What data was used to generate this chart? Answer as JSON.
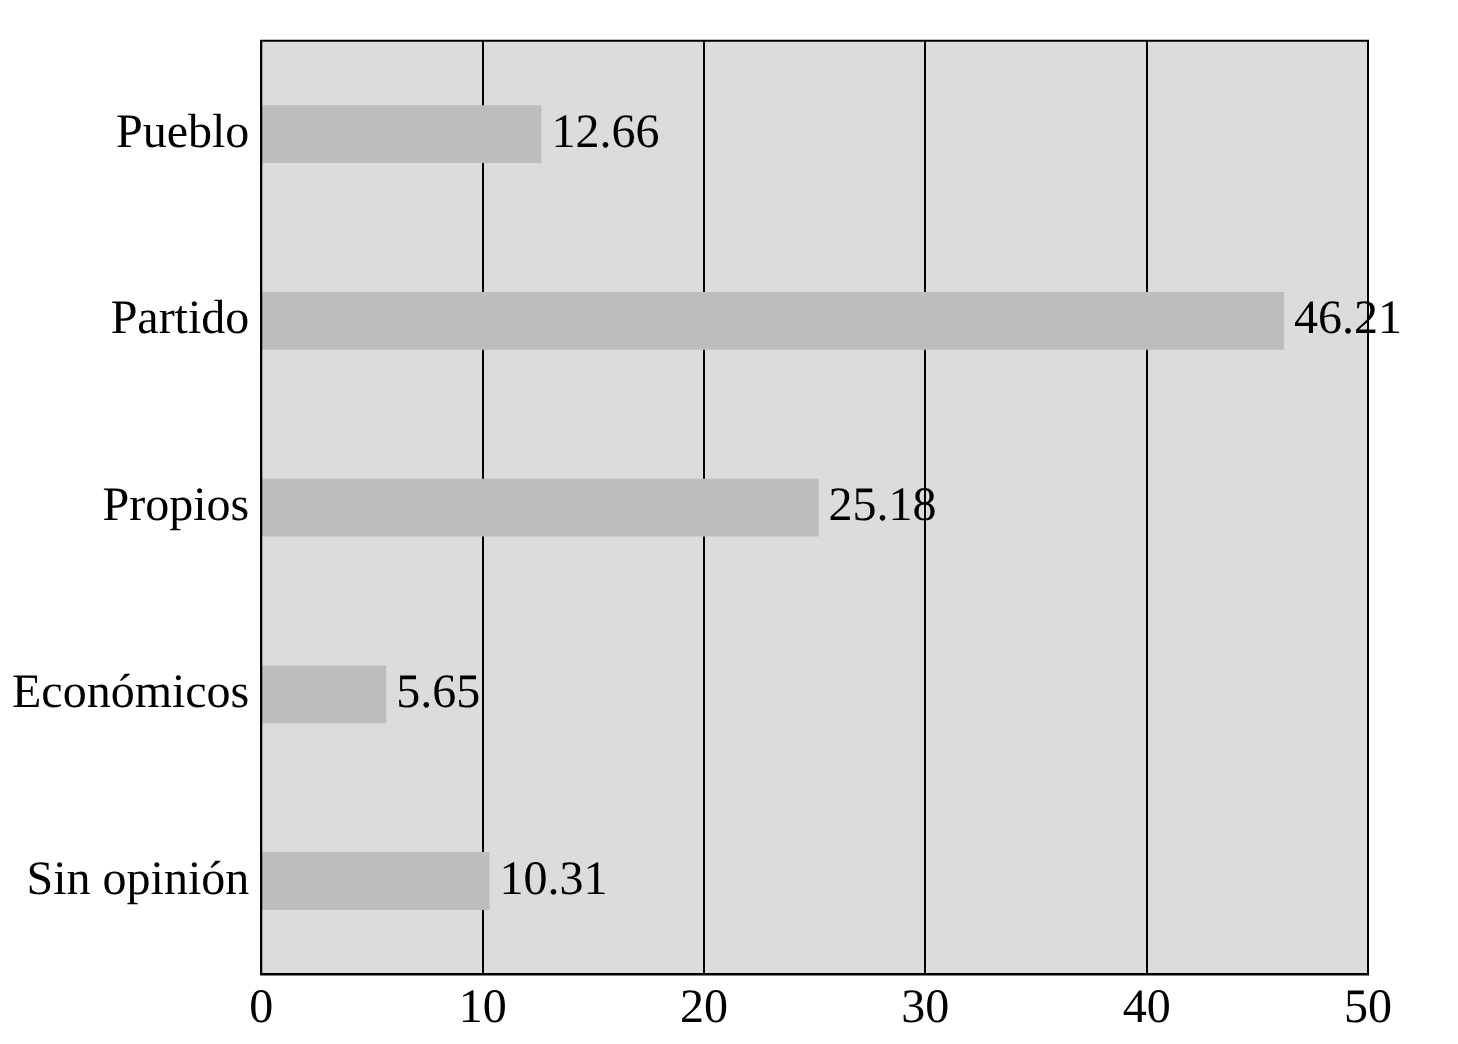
{
  "chart_data": {
    "type": "bar",
    "orientation": "horizontal",
    "categories": [
      "Pueblo",
      "Partido",
      "Propios",
      "Económicos",
      "Sin opinión"
    ],
    "values": [
      12.66,
      46.21,
      25.18,
      5.65,
      10.31
    ],
    "color": "#bdbdbd",
    "xlim": [
      0,
      50
    ],
    "xticks": [
      0,
      10,
      20,
      30,
      40,
      50
    ],
    "grid": "x",
    "data_labels": true
  }
}
